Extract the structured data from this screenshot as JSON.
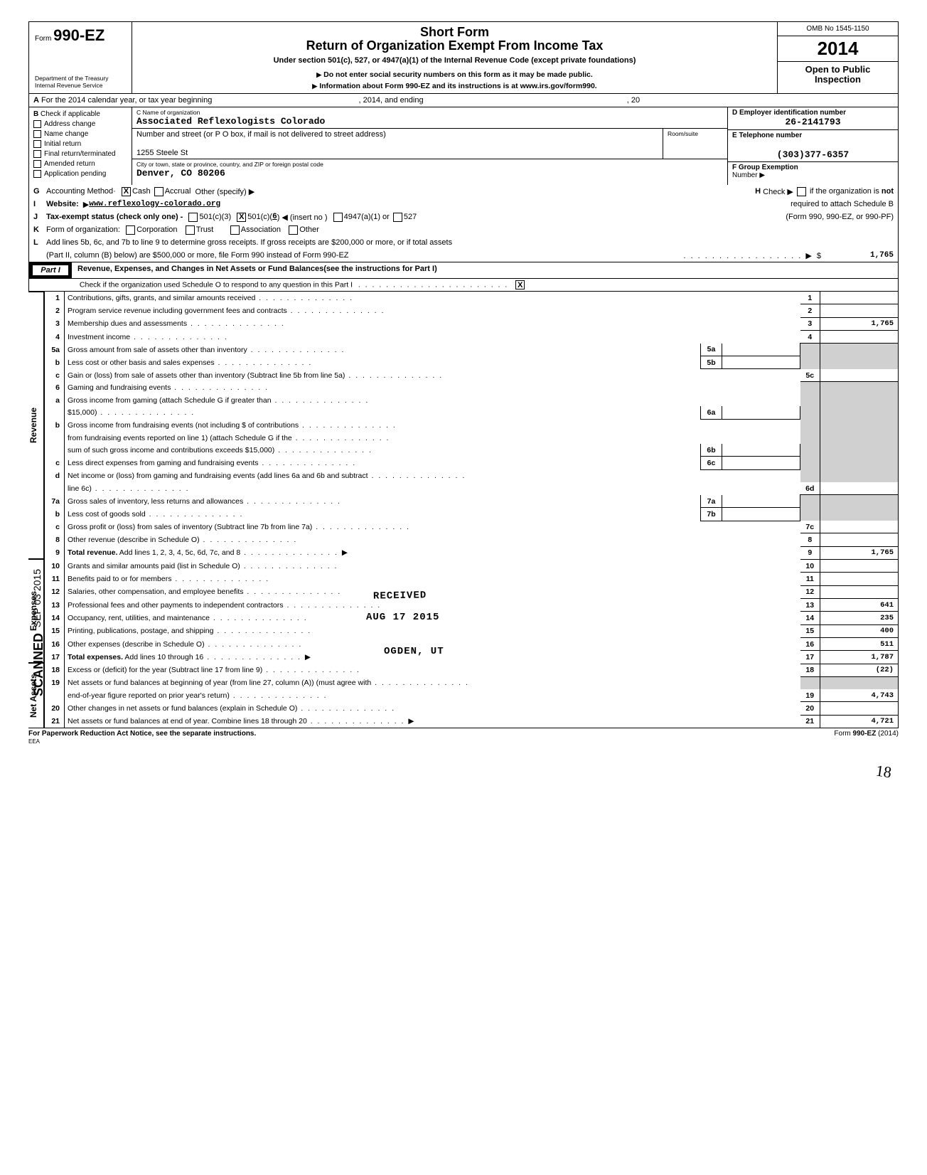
{
  "header": {
    "form_prefix": "Form",
    "form_code": "990-EZ",
    "dept1": "Department of the Treasury",
    "dept2": "Internal Revenue Service",
    "title1": "Short Form",
    "title2": "Return of Organization Exempt From Income Tax",
    "subtitle": "Under section 501(c), 527, or 4947(a)(1) of the Internal Revenue Code (except private foundations)",
    "warn": "Do not enter social security numbers on this form as it may be made public.",
    "info": "Information about Form 990-EZ and its instructions is at www.irs.gov/form990.",
    "omb": "OMB No 1545-1150",
    "year": "2014",
    "open1": "Open to Public",
    "open2": "Inspection"
  },
  "rowA": {
    "prefix": "A",
    "t1": "For the 2014 calendar year, or tax year beginning",
    "t2": ", 2014, and ending",
    "t3": ", 20"
  },
  "colB": {
    "title": "B",
    "sub": "Check if applicable",
    "items": [
      "Address change",
      "Name change",
      "Initial return",
      "Final return/terminated",
      "Amended return",
      "Application pending"
    ]
  },
  "colC": {
    "name_lbl": "C  Name of organization",
    "name": "Associated Reflexologists Colorado",
    "addr_lbl": "Number and street (or P O  box, if mail is not delivered to street address)",
    "room_lbl": "Room/suite",
    "addr": "1255 Steele St",
    "city_lbl": "City or town, state or province, country, and ZIP or foreign postal code",
    "city": "Denver, CO 80206"
  },
  "colDE": {
    "D_lbl": "D  Employer identification number",
    "D_val": "26-2141793",
    "E_lbl": "E  Telephone number",
    "E_val": "(303)377-6357",
    "F_lbl": "F  Group Exemption",
    "F_sub": "Number  ▶"
  },
  "lineG": {
    "letter": "G",
    "text": "Accounting Method·",
    "cash": "Cash",
    "accrual": "Accrual",
    "other": "Other (specify) ▶"
  },
  "lineH": {
    "letter": "H",
    "text": "Check ▶",
    "tail": "if the organization is",
    "not": "not"
  },
  "lineI": {
    "letter": "I",
    "text": "Website:",
    "val": "www.reflexology-colorado.org",
    "req": "required to attach Schedule B"
  },
  "lineJ": {
    "letter": "J",
    "text": "Tax-exempt status (check only one) -",
    "c3": "501(c)(3)",
    "c": "501(c)(",
    "cnum": "6",
    "cparen": ")  ◀ (insert no )",
    "a1": "4947(a)(1) or",
    "s527": "527",
    "tail": "(Form 990, 990-EZ, or 990-PF)"
  },
  "lineK": {
    "letter": "K",
    "text": "Form of organization:",
    "corp": "Corporation",
    "trust": "Trust",
    "assoc": "Association",
    "other": "Other"
  },
  "lineL": {
    "letter": "L",
    "t1": "Add lines 5b, 6c, and 7b to line 9 to determine gross receipts. If gross receipts are $200,000 or more, or if total assets",
    "t2": "(Part II, column (B) below) are $500,000 or more, file Form 990 instead of Form 990-EZ",
    "amt": "1,765"
  },
  "part1": {
    "label": "Part I",
    "title": "Revenue, Expenses, and Changes in Net Assets or Fund Balances(see the instructions for Part I)",
    "sub": "Check if the organization used Schedule O to respond to any question in this Part I"
  },
  "sections": {
    "revenue": "Revenue",
    "expenses": "Expenses",
    "netassets": "Net Assets"
  },
  "rows": [
    {
      "n": "1",
      "d": "Contributions, gifts, grants, and similar amounts received",
      "s": "1",
      "a": ""
    },
    {
      "n": "2",
      "d": "Program service revenue including government fees and contracts",
      "s": "2",
      "a": ""
    },
    {
      "n": "3",
      "d": "Membership dues and assessments",
      "s": "3",
      "a": "1,765"
    },
    {
      "n": "4",
      "d": "Investment income",
      "s": "4",
      "a": ""
    },
    {
      "n": "5a",
      "d": "Gross amount from sale of assets other than inventory",
      "m": "5a",
      "ma": ""
    },
    {
      "n": "b",
      "d": "Less  cost or other basis and sales expenses",
      "m": "5b",
      "ma": ""
    },
    {
      "n": "c",
      "d": "Gain or (loss) from sale of assets other than inventory (Subtract line 5b from line 5a)",
      "s": "5c",
      "a": ""
    },
    {
      "n": "6",
      "d": "Gaming and fundraising events"
    },
    {
      "n": "a",
      "d": "Gross income from gaming (attach Schedule G if greater than"
    },
    {
      "n": "",
      "d": "$15,000)",
      "m": "6a",
      "ma": ""
    },
    {
      "n": "b",
      "d": "Gross income from fundraising events (not including $                              of contributions"
    },
    {
      "n": "",
      "d": "from fundraising events reported on line 1) (attach Schedule G if the"
    },
    {
      "n": "",
      "d": "sum of such gross income and contributions exceeds $15,000)",
      "m": "6b",
      "ma": ""
    },
    {
      "n": "c",
      "d": "Less  direct expenses from gaming and fundraising events",
      "m": "6c",
      "ma": ""
    },
    {
      "n": "d",
      "d": "Net income or (loss) from gaming and fundraising events (add lines 6a and 6b and subtract"
    },
    {
      "n": "",
      "d": "line 6c)",
      "s": "6d",
      "a": ""
    },
    {
      "n": "7a",
      "d": "Gross sales of inventory, less returns and allowances",
      "m": "7a",
      "ma": ""
    },
    {
      "n": "b",
      "d": "Less  cost of goods sold",
      "m": "7b",
      "ma": ""
    },
    {
      "n": "c",
      "d": "Gross profit or (loss) from sales of inventory (Subtract line 7b from line 7a)",
      "s": "7c",
      "a": ""
    },
    {
      "n": "8",
      "d": "Other revenue (describe in Schedule O)",
      "s": "8",
      "a": ""
    },
    {
      "n": "9",
      "d": "Total revenue. Add lines 1, 2, 3, 4, 5c, 6d, 7c, and 8",
      "s": "9",
      "a": "1,765",
      "bold": true,
      "arrow": true
    },
    {
      "n": "10",
      "d": "Grants and similar amounts paid (list in Schedule O)",
      "s": "10",
      "a": ""
    },
    {
      "n": "11",
      "d": "Benefits paid to or for members",
      "s": "11",
      "a": ""
    },
    {
      "n": "12",
      "d": "Salaries, other compensation, and employee benefits",
      "s": "12",
      "a": ""
    },
    {
      "n": "13",
      "d": "Professional fees and other payments to independent contractors",
      "s": "13",
      "a": "641"
    },
    {
      "n": "14",
      "d": "Occupancy, rent, utilities, and maintenance",
      "s": "14",
      "a": "235"
    },
    {
      "n": "15",
      "d": "Printing, publications, postage, and shipping",
      "s": "15",
      "a": "400"
    },
    {
      "n": "16",
      "d": "Other expenses (describe in Schedule O)",
      "s": "16",
      "a": "511"
    },
    {
      "n": "17",
      "d": "Total expenses.  Add lines 10 through 16",
      "s": "17",
      "a": "1,787",
      "bold": true,
      "arrow": true
    },
    {
      "n": "18",
      "d": "Excess or (deficit) for the year (Subtract line 17 from line 9)",
      "s": "18",
      "a": "(22)"
    },
    {
      "n": "19",
      "d": "Net assets or fund balances at beginning of year (from line 27, column (A)) (must agree with"
    },
    {
      "n": "",
      "d": "end-of-year figure reported on prior year's return)",
      "s": "19",
      "a": "4,743"
    },
    {
      "n": "20",
      "d": "Other changes in net assets or fund balances (explain in Schedule O)",
      "s": "20",
      "a": ""
    },
    {
      "n": "21",
      "d": "Net assets or fund balances at end of year. Combine lines 18 through 20",
      "s": "21",
      "a": "4,721",
      "arrow": true
    }
  ],
  "stamps": {
    "received": "RECEIVED",
    "date": "AUG 17 2015",
    "ogden": "OGDEN, UT",
    "scanned": "SCANNED",
    "sepdate": "SEP 03 2015"
  },
  "footer": {
    "left": "For Paperwork Reduction Act Notice, see the separate instructions.",
    "eea": "EEA",
    "right": "Form 990-EZ (2014)"
  },
  "pagenum": "18"
}
